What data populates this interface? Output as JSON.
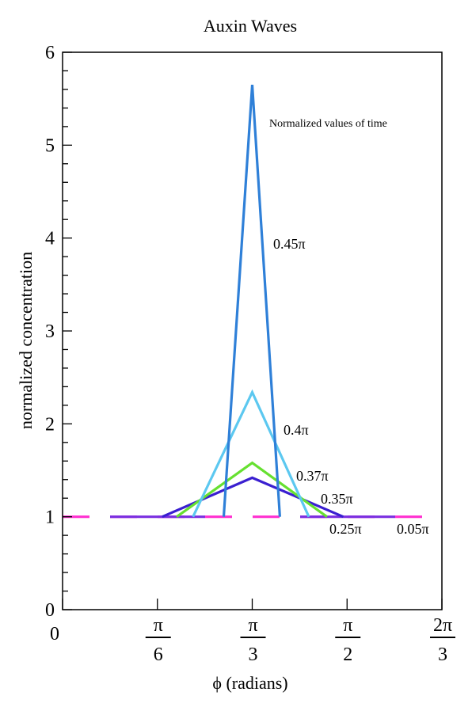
{
  "chart_data": {
    "type": "line",
    "title": "Auxin Waves",
    "xlabel": "ϕ (radians)",
    "ylabel": "normalized concentration",
    "xlim": [
      0,
      2.0944
    ],
    "ylim": [
      0,
      6
    ],
    "x_ticks": [
      {
        "value": 0,
        "label": "0"
      },
      {
        "value": 0.5236,
        "num": "π",
        "den": "6"
      },
      {
        "value": 1.0472,
        "num": "π",
        "den": "3"
      },
      {
        "value": 1.5708,
        "num": "π",
        "den": "2"
      },
      {
        "value": 2.0944,
        "num": "2π",
        "den": "3"
      }
    ],
    "y_ticks": [
      0,
      1,
      2,
      3,
      4,
      5,
      6
    ],
    "legend_title": "Normalized values of time",
    "series": [
      {
        "name": "0.05π",
        "color": "#ff2fd0",
        "dashed": true,
        "x": [
          0,
          2.0944
        ],
        "y": [
          1,
          1
        ]
      },
      {
        "name": "0.25π",
        "color": "#7a2fe0",
        "dashed": true,
        "x": [
          0,
          2.0944
        ],
        "y": [
          1,
          1
        ]
      },
      {
        "name": "0.35π",
        "color": "#3a1fd0",
        "x": [
          0.55,
          1.0472,
          1.55
        ],
        "y": [
          1,
          1.42,
          1
        ]
      },
      {
        "name": "0.37π",
        "color": "#66e030",
        "x": [
          0.63,
          1.0472,
          1.46
        ],
        "y": [
          1,
          1.58,
          1
        ]
      },
      {
        "name": "0.4π",
        "color": "#5cc8f0",
        "x": [
          0.72,
          1.0472,
          1.36
        ],
        "y": [
          1,
          2.34,
          1
        ]
      },
      {
        "name": "0.45π",
        "color": "#2f80d8",
        "x": [
          0.89,
          1.0472,
          1.2
        ],
        "y": [
          1,
          5.65,
          1
        ]
      }
    ]
  }
}
